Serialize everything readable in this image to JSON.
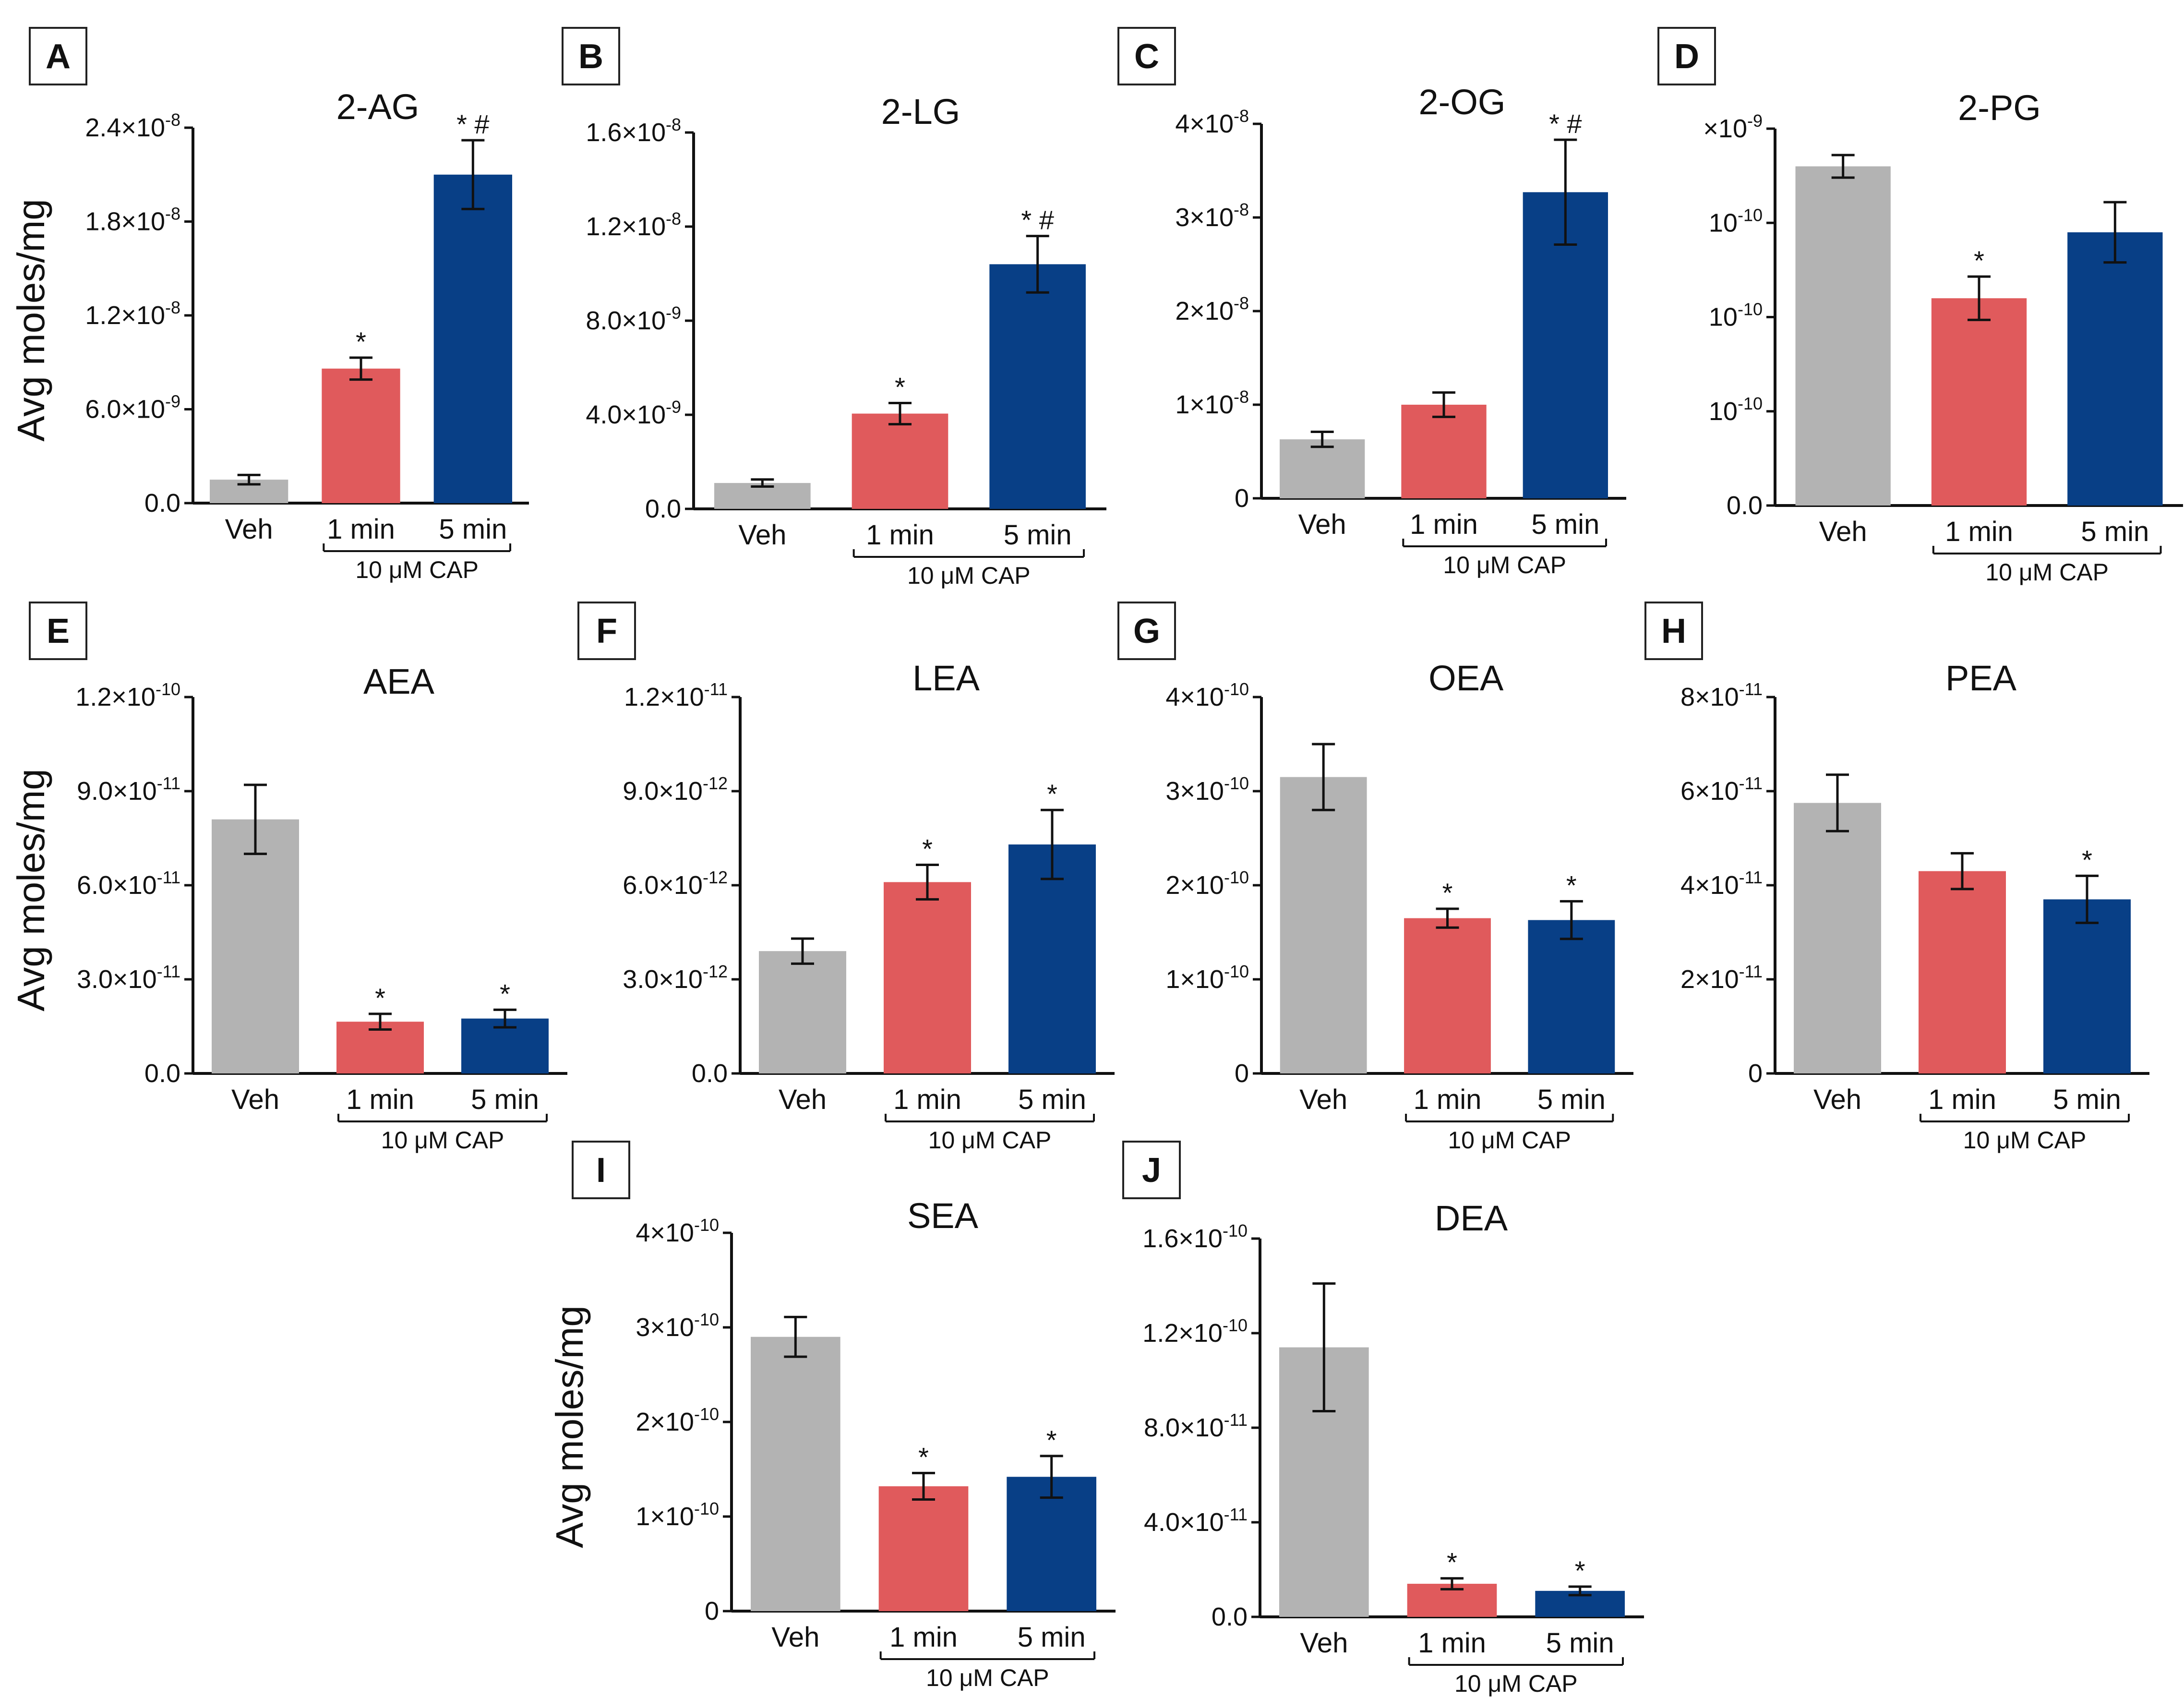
{
  "figure": {
    "ylabel": "Avg moles/mg",
    "categories": [
      "Veh",
      "1 min",
      "5 min"
    ],
    "group_label": "10 μM CAP",
    "colors": {
      "veh": "#b3b3b3",
      "one_min": "#e05a5c",
      "five_min": "#083f86",
      "axis": "#111111"
    }
  },
  "chart_data": [
    {
      "panel": "A",
      "type": "bar",
      "title": "2-AG",
      "categories": [
        "Veh",
        "1 min",
        "5 min"
      ],
      "values": [
        1.5e-09,
        8.6e-09,
        2.1e-08
      ],
      "errors": [
        3e-10,
        7e-10,
        2.2e-09
      ],
      "significance": [
        "",
        "*",
        "* #"
      ],
      "ylim": [
        0,
        2.4e-08
      ],
      "yticks": [
        0,
        6e-09,
        1.2e-08,
        1.8e-08,
        2.4e-08
      ],
      "ytick_labels": [
        [
          "0.0",
          ""
        ],
        [
          "6.0×10",
          "-9"
        ],
        [
          "1.2×10",
          "-8"
        ],
        [
          "1.8×10",
          "-8"
        ],
        [
          "2.4×10",
          "-8"
        ]
      ],
      "xlabel": "",
      "ylabel": "Avg moles/mg"
    },
    {
      "panel": "B",
      "type": "bar",
      "title": "2-LG",
      "categories": [
        "Veh",
        "1 min",
        "5 min"
      ],
      "values": [
        1.1e-09,
        4.05e-09,
        1.04e-08
      ],
      "errors": [
        1.5e-10,
        4.5e-10,
        1.2e-09
      ],
      "significance": [
        "",
        "*",
        "* #"
      ],
      "ylim": [
        0,
        1.6e-08
      ],
      "yticks": [
        0,
        4e-09,
        8e-09,
        1.2e-08,
        1.6e-08
      ],
      "ytick_labels": [
        [
          "0.0",
          ""
        ],
        [
          "4.0×10",
          "-9"
        ],
        [
          "8.0×10",
          "-9"
        ],
        [
          "1.2×10",
          "-8"
        ],
        [
          "1.6×10",
          "-8"
        ]
      ],
      "xlabel": "",
      "ylabel": ""
    },
    {
      "panel": "C",
      "type": "bar",
      "title": "2-OG",
      "categories": [
        "Veh",
        "1 min",
        "5 min"
      ],
      "values": [
        6.3e-09,
        1e-08,
        3.27e-08
      ],
      "errors": [
        8e-10,
        1.3e-09,
        5.6e-09
      ],
      "significance": [
        "",
        "",
        "* #"
      ],
      "ylim": [
        0,
        4e-08
      ],
      "yticks": [
        0,
        1e-08,
        2e-08,
        3e-08,
        4e-08
      ],
      "ytick_labels": [
        [
          "0",
          ""
        ],
        [
          "1×10",
          "-8"
        ],
        [
          "2×10",
          "-8"
        ],
        [
          "3×10",
          "-8"
        ],
        [
          "4×10",
          "-8"
        ]
      ],
      "xlabel": "",
      "ylabel": ""
    },
    {
      "panel": "D",
      "type": "bar",
      "title": "2-PG",
      "categories": [
        "Veh",
        "1 min",
        "5 min"
      ],
      "values": [
        3.6e-10,
        2.2e-10,
        2.9e-10
      ],
      "errors": [
        1.2e-11,
        2.3e-11,
        3.2e-11
      ],
      "significance": [
        "",
        "*",
        ""
      ],
      "ylim": [
        0,
        4e-10
      ],
      "yticks": [
        0,
        1e-10,
        2e-10,
        3e-10,
        4e-10
      ],
      "ytick_labels": [
        [
          "0.0",
          ""
        ],
        [
          "10",
          "-10"
        ],
        [
          "10",
          "-10"
        ],
        [
          "10",
          "-10"
        ],
        [
          "×10",
          "-9"
        ]
      ],
      "xlabel": "",
      "ylabel": ""
    },
    {
      "panel": "E",
      "type": "bar",
      "title": "AEA",
      "categories": [
        "Veh",
        "1 min",
        "5 min"
      ],
      "values": [
        8.1e-11,
        1.65e-11,
        1.75e-11
      ],
      "errors": [
        1.1e-11,
        2.5e-12,
        2.8e-12
      ],
      "significance": [
        "",
        "*",
        "*"
      ],
      "ylim": [
        0,
        1.2e-10
      ],
      "yticks": [
        0,
        3e-11,
        6e-11,
        9e-11,
        1.2e-10
      ],
      "ytick_labels": [
        [
          "0.0",
          ""
        ],
        [
          "3.0×10",
          "-11"
        ],
        [
          "6.0×10",
          "-11"
        ],
        [
          "9.0×10",
          "-11"
        ],
        [
          "1.2×10",
          "-10"
        ]
      ],
      "xlabel": "",
      "ylabel": "Avg moles/mg"
    },
    {
      "panel": "F",
      "type": "bar",
      "title": "LEA",
      "categories": [
        "Veh",
        "1 min",
        "5 min"
      ],
      "values": [
        3.9e-12,
        6.1e-12,
        7.3e-12
      ],
      "errors": [
        4e-13,
        5.5e-13,
        1.1e-12
      ],
      "significance": [
        "",
        "*",
        "*"
      ],
      "ylim": [
        0,
        1.2e-11
      ],
      "yticks": [
        0,
        3e-12,
        6e-12,
        9e-12,
        1.2e-11
      ],
      "ytick_labels": [
        [
          "0.0",
          ""
        ],
        [
          "3.0×10",
          "-12"
        ],
        [
          "6.0×10",
          "-12"
        ],
        [
          "9.0×10",
          "-12"
        ],
        [
          "1.2×10",
          "-11"
        ]
      ],
      "xlabel": "",
      "ylabel": ""
    },
    {
      "panel": "G",
      "type": "bar",
      "title": "OEA",
      "categories": [
        "Veh",
        "1 min",
        "5 min"
      ],
      "values": [
        3.15e-10,
        1.65e-10,
        1.63e-10
      ],
      "errors": [
        3.5e-11,
        1e-11,
        2e-11
      ],
      "significance": [
        "",
        "*",
        "*"
      ],
      "ylim": [
        0,
        4e-10
      ],
      "yticks": [
        0,
        1e-10,
        2e-10,
        3e-10,
        4e-10
      ],
      "ytick_labels": [
        [
          "0",
          ""
        ],
        [
          "1×10",
          "-10"
        ],
        [
          "2×10",
          "-10"
        ],
        [
          "3×10",
          "-10"
        ],
        [
          "4×10",
          "-10"
        ]
      ],
      "xlabel": "",
      "ylabel": ""
    },
    {
      "panel": "H",
      "type": "bar",
      "title": "PEA",
      "categories": [
        "Veh",
        "1 min",
        "5 min"
      ],
      "values": [
        5.75e-11,
        4.3e-11,
        3.7e-11
      ],
      "errors": [
        6e-12,
        3.8e-12,
        5e-12
      ],
      "significance": [
        "",
        "",
        "*"
      ],
      "ylim": [
        0,
        8e-11
      ],
      "yticks": [
        0,
        2e-11,
        4e-11,
        6e-11,
        8e-11
      ],
      "ytick_labels": [
        [
          "0",
          ""
        ],
        [
          "2×10",
          "-11"
        ],
        [
          "4×10",
          "-11"
        ],
        [
          "6×10",
          "-11"
        ],
        [
          "8×10",
          "-11"
        ]
      ],
      "xlabel": "",
      "ylabel": ""
    },
    {
      "panel": "I",
      "type": "bar",
      "title": "SEA",
      "categories": [
        "Veh",
        "1 min",
        "5 min"
      ],
      "values": [
        2.9e-10,
        1.32e-10,
        1.42e-10
      ],
      "errors": [
        2.1e-11,
        1.4e-11,
        2.2e-11
      ],
      "significance": [
        "",
        "*",
        "*"
      ],
      "ylim": [
        0,
        4e-10
      ],
      "yticks": [
        0,
        1e-10,
        2e-10,
        3e-10,
        4e-10
      ],
      "ytick_labels": [
        [
          "0",
          ""
        ],
        [
          "1×10",
          "-10"
        ],
        [
          "2×10",
          "-10"
        ],
        [
          "3×10",
          "-10"
        ],
        [
          "4×10",
          "-10"
        ]
      ],
      "xlabel": "",
      "ylabel": "Avg moles/mg"
    },
    {
      "panel": "J",
      "type": "bar",
      "title": "DEA",
      "categories": [
        "Veh",
        "1 min",
        "5 min"
      ],
      "values": [
        1.14e-10,
        1.4e-11,
        1.1e-11
      ],
      "errors": [
        2.7e-11,
        2.3e-12,
        1.8e-12
      ],
      "significance": [
        "",
        "*",
        "*"
      ],
      "ylim": [
        0,
        1.6e-10
      ],
      "yticks": [
        0,
        4e-11,
        8e-11,
        1.2e-10,
        1.6e-10
      ],
      "ytick_labels": [
        [
          "0.0",
          ""
        ],
        [
          "4.0×10",
          "-11"
        ],
        [
          "8.0×10",
          "-11"
        ],
        [
          "1.2×10",
          "-10"
        ],
        [
          "1.6×10",
          "-10"
        ]
      ],
      "xlabel": "",
      "ylabel": ""
    }
  ]
}
